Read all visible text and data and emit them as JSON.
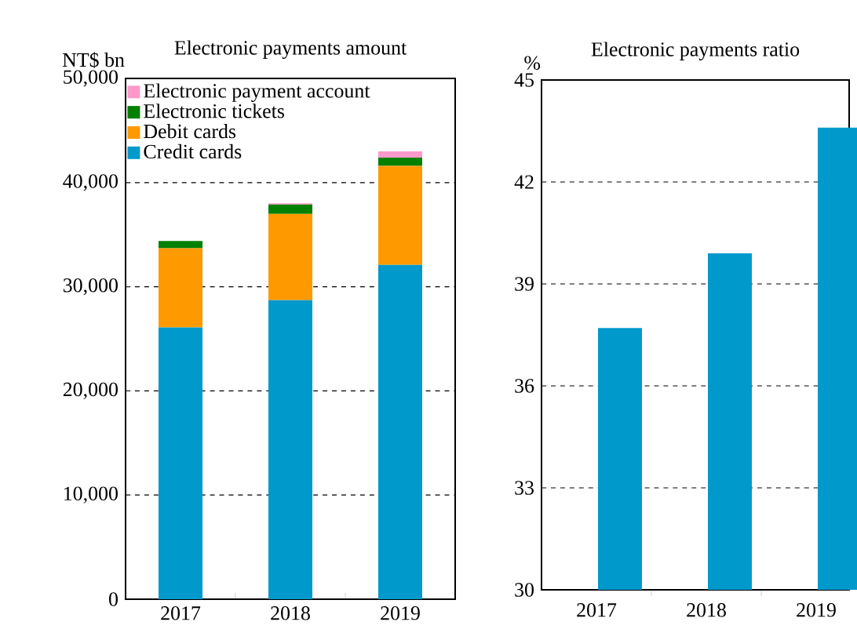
{
  "chart_data": [
    {
      "type": "bar",
      "title": "Electronic payments amount",
      "ylabel": "NT$ bn",
      "categories": [
        "2017",
        "2018",
        "2019"
      ],
      "stacked": true,
      "series": [
        {
          "name": "Credit cards",
          "color": "#0099cc",
          "values": [
            26100,
            28700,
            32100
          ]
        },
        {
          "name": "Debit cards",
          "color": "#ff9900",
          "values": [
            7600,
            8300,
            9500
          ]
        },
        {
          "name": "Electronic tickets",
          "color": "#008000",
          "values": [
            700,
            900,
            800
          ]
        },
        {
          "name": "Electronic payment account",
          "color": "#ff99cc",
          "values": [
            0,
            100,
            600
          ]
        }
      ],
      "ylim": [
        0,
        50000
      ],
      "yticks": [
        0,
        {
          "value": 10000,
          "label": "10,000"
        },
        {
          "value": 20000,
          "label": "20,000"
        },
        {
          "value": 30000,
          "label": "30,000"
        },
        {
          "value": 40000,
          "label": "40,000"
        },
        {
          "value": 50000,
          "label": "50,000"
        }
      ],
      "grid": "y",
      "legend": "top left"
    },
    {
      "type": "bar",
      "title": "Electronic payments ratio",
      "ylabel": "%",
      "categories": [
        "2017",
        "2018",
        "2019"
      ],
      "values": [
        37.7,
        39.9,
        43.6
      ],
      "color": "#0099cc",
      "ylim": [
        30,
        45
      ],
      "yticks": [
        30,
        33,
        36,
        39,
        42,
        45
      ],
      "grid": "y"
    }
  ]
}
